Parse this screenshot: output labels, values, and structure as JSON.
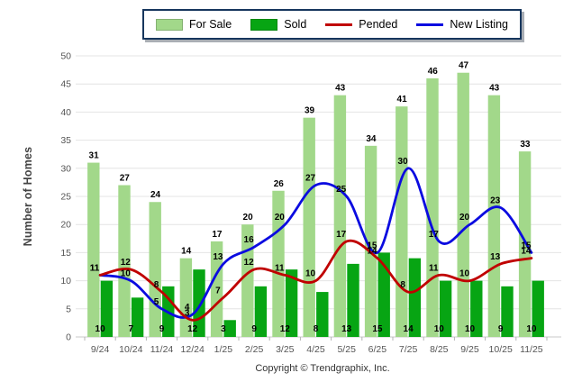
{
  "chart_data": {
    "type": "combo",
    "title": "",
    "ylabel": "Number of Homes",
    "xlabel": "",
    "ylim": [
      0,
      50
    ],
    "ytick_step": 5,
    "grid": "horizontal",
    "legend_position": "top-center",
    "categories": [
      "9/24",
      "10/24",
      "11/24",
      "12/24",
      "1/25",
      "2/25",
      "3/25",
      "4/25",
      "5/25",
      "6/25",
      "7/25",
      "8/25",
      "9/25",
      "10/25",
      "11/25"
    ],
    "series": [
      {
        "name": "For Sale",
        "type": "bar",
        "color": "#a2d88a",
        "values": [
          31,
          27,
          24,
          14,
          17,
          20,
          26,
          39,
          43,
          34,
          41,
          46,
          47,
          43,
          33
        ]
      },
      {
        "name": "Sold",
        "type": "bar",
        "color": "#07a513",
        "values": [
          10,
          7,
          9,
          12,
          3,
          9,
          12,
          8,
          13,
          15,
          14,
          10,
          10,
          9,
          10
        ]
      },
      {
        "name": "Pended",
        "type": "line",
        "color": "#c00000",
        "values": [
          11,
          12,
          8,
          3,
          7,
          12,
          11,
          10,
          17,
          14,
          8,
          11,
          10,
          13,
          14
        ]
      },
      {
        "name": "New Listing",
        "type": "line",
        "color": "#0b0be0",
        "values": [
          11,
          10,
          5,
          4,
          13,
          16,
          20,
          27,
          25,
          15,
          30,
          17,
          20,
          23,
          15
        ]
      }
    ],
    "footer": "Copyright © Trendgraphix, Inc.",
    "axis_text_color": "#555555",
    "gridline_color": "#e4e4e4",
    "baseline_color": "#c9c9c9",
    "data_label_color": "#000000"
  }
}
